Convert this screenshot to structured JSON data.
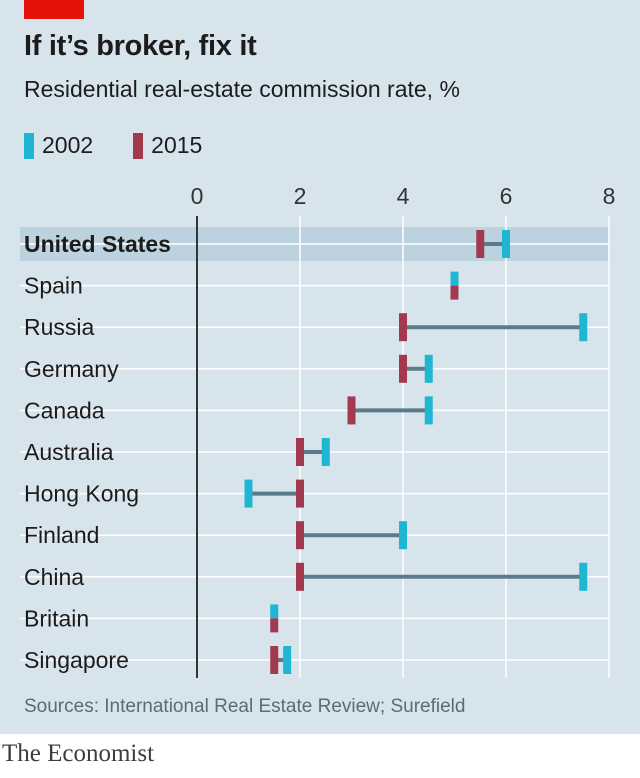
{
  "header": {
    "title": "If it’s broker, fix it",
    "subtitle": "Residential real-estate commission rate, %"
  },
  "legend": [
    {
      "label": "2002",
      "color": "#1fb6d3"
    },
    {
      "label": "2015",
      "color": "#a3394f"
    }
  ],
  "chart_data": {
    "type": "dumbbell",
    "xlim": [
      0,
      8
    ],
    "xticks": [
      "0",
      "2",
      "4",
      "6",
      "8"
    ],
    "highlighted_category": "United States",
    "categories": [
      "United States",
      "Spain",
      "Russia",
      "Germany",
      "Canada",
      "Australia",
      "Hong Kong",
      "Finland",
      "China",
      "Britain",
      "Singapore"
    ],
    "series": [
      {
        "name": "2002",
        "values": [
          6,
          5,
          7.5,
          4.5,
          4.5,
          2.5,
          1,
          4,
          7.5,
          1.5,
          1.75
        ]
      },
      {
        "name": "2015",
        "values": [
          5.5,
          5,
          4,
          4,
          3,
          2,
          2,
          2,
          2,
          1.5,
          1.5
        ]
      }
    ],
    "grid": true,
    "legend_position": "top-left"
  },
  "footer": {
    "source": "Sources: International Real Estate Review; Surefield",
    "brand": "The Economist"
  }
}
